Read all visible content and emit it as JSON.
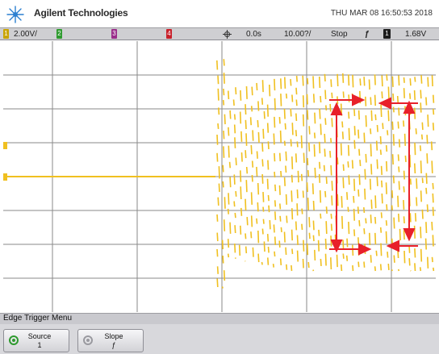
{
  "header": {
    "brand": "Agilent Technologies",
    "datetime": "THU MAR 08 16:50:53 2018"
  },
  "status": {
    "ch1_number": "1",
    "ch1_scale": "2.00V/",
    "ch2_number": "2",
    "ch3_number": "3",
    "ch4_number": "4",
    "time_delay": "0.0s",
    "time_scale": "10.00?/",
    "run_state": "Stop",
    "trigger_slope": "ƒ",
    "trigger_source": "1",
    "trigger_level": "1.68V"
  },
  "menu": {
    "title": "Edge Trigger Menu"
  },
  "softkeys": {
    "source_label": "Source",
    "source_value": "1",
    "slope_label": "Slope",
    "slope_value": "ƒ"
  },
  "colors": {
    "trace": "#f0c020",
    "annotation": "#e8202a",
    "grid": "#8a8a8a"
  },
  "icons": [
    "agilent-spark-logo-icon",
    "trigger-position-icon",
    "entry-knob-icon"
  ]
}
